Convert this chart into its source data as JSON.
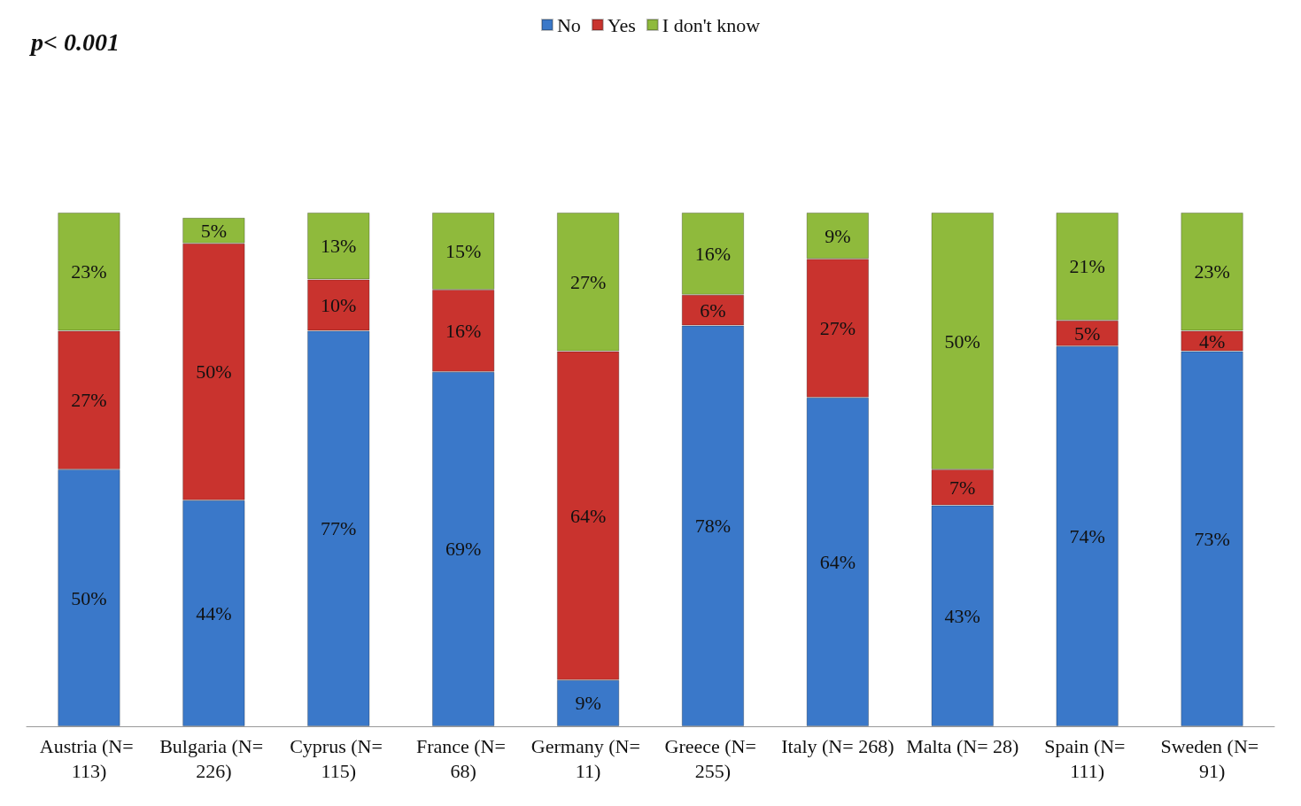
{
  "chart_data": {
    "type": "bar",
    "title": "p< 0.001",
    "stacked": true,
    "legend": "top",
    "categories": [
      "Austria (N= 113)",
      "Bulgaria (N= 226)",
      "Cyprus (N= 115)",
      "France (N= 68)",
      "Germany (N= 11)",
      "Greece (N= 255)",
      "Italy (N= 268)",
      "Malta (N= 28)",
      "Spain (N= 111)",
      "Sweden (N= 91)"
    ],
    "series": [
      {
        "name": "No",
        "color": "#3a78c9",
        "values": [
          50,
          44,
          77,
          69,
          9,
          78,
          64,
          43,
          74,
          73
        ],
        "value_labels": [
          "50%",
          "44%",
          "77%",
          "69%",
          "9%",
          "78%",
          "64%",
          "43%",
          "74%",
          "73%"
        ]
      },
      {
        "name": "Yes",
        "color": "#c9332e",
        "values": [
          27,
          50,
          10,
          16,
          64,
          6,
          27,
          7,
          5,
          4
        ],
        "value_labels": [
          "27%",
          "50%",
          "10%",
          "16%",
          "64%",
          "6%",
          "27%",
          "7%",
          "5%",
          "4%"
        ]
      },
      {
        "name": "I don't know",
        "color": "#8fba3c",
        "values": [
          23,
          5,
          13,
          15,
          27,
          16,
          9,
          50,
          21,
          23
        ],
        "value_labels": [
          "23%",
          "5%",
          "13%",
          "15%",
          "27%",
          "16%",
          "9%",
          "50%",
          "21%",
          "23%"
        ]
      }
    ]
  }
}
